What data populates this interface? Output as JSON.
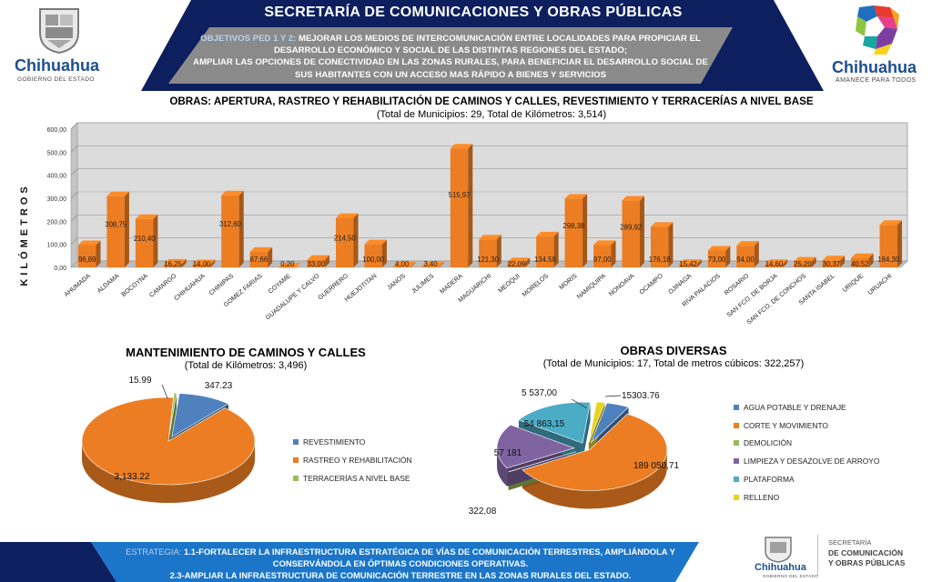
{
  "header": {
    "title": "SECRETARÍA DE COMUNICACIONES Y OBRAS PÚBLICAS",
    "objectives_label": "OBJETIVOS PED 1 Y 2:",
    "objectives_line1": "MEJORAR LOS MEDIOS DE INTERCOMUNICACIÓN ENTRE LOCALIDADES PARA PROPICIAR EL",
    "objectives_line2": "DESARROLLO ECONÓMICO Y SOCIAL DE LAS DISTINTAS REGIONES DEL ESTADO;",
    "objectives_line3": "AMPLIAR LAS OPCIONES DE CONECTIVIDAD EN LAS ZONAS RURALES, PARA BENEFICIAR EL DESARROLLO SOCIAL DE",
    "objectives_line4": "SUS HABITANTES CON UN ACCESO MAS RÁPIDO A BIENES Y SERVICIOS"
  },
  "logos": {
    "left_name": "Chihuahua",
    "left_sub": "GOBIERNO DEL ESTADO",
    "right_name": "Chihuahua",
    "right_sub": "AMANECE PARA TODOS",
    "footer_name": "Chihuahua",
    "footer_sub": "GOBIERNO DEL ESTADO",
    "footer_secretaria_1": "SECRETARÍA",
    "footer_secretaria_2": "DE COMUNICACIÓN",
    "footer_secretaria_3": "Y OBRAS PÚBLICAS"
  },
  "colors": {
    "navy": "#0d1f5e",
    "grey_band": "#8c8c8c",
    "accent_blue": "#2f74c8",
    "orange": "#ec7d22",
    "blue": "#4e81bd",
    "green": "#9bbb59",
    "purple": "#8064a2",
    "teal": "#4bacc6",
    "yellow": "#e8d320",
    "footer_blue": "#1b75c9"
  },
  "chart_data": [
    {
      "type": "bar",
      "title": "OBRAS: APERTURA, RASTREO Y REHABILITACIÓN DE CAMINOS Y CALLES, REVESTIMIENTO Y TERRACERÍAS A NIVEL BASE",
      "subtitle": "(Total de Municipios: 29, Total de Kilómetros: 3,514)",
      "ylabel": "KILÓMETROS",
      "ylim": [
        0,
        600
      ],
      "yticks": [
        "0,00",
        "100,00",
        "200,00",
        "300,00",
        "400,00",
        "500,00",
        "600,00"
      ],
      "grid": true,
      "categories": [
        "AHUMADA",
        "ALDAMA",
        "BOCOYNA",
        "CAMARGO",
        "CHIHUAHUA",
        "CHINIPAS",
        "GOMEZ FARIAS",
        "COYAME",
        "GUADALUPE Y CALVO",
        "GUERRERO",
        "HUEJOTITAN",
        "JANOS",
        "JULIMES",
        "MADERA",
        "MAGUARICHI",
        "MEOQUI",
        "MORELOS",
        "MORIS",
        "NAMIQUIPA",
        "NONOAVA",
        "OCAMPO",
        "OJINAGA",
        "RIVA PALACIOS",
        "ROSARIO",
        "SAN FCO. DE BORJA",
        "SAN FCO. DE CONCHOS",
        "SANTA ISABEL",
        "URIQUE",
        "URUACHI"
      ],
      "values": [
        96.89,
        308.75,
        210.4,
        16.25,
        14.0,
        312.6,
        67.66,
        0.2,
        33.0,
        214.5,
        100.0,
        4.0,
        3.4,
        515.97,
        121.3,
        22.09,
        134.58,
        298.38,
        97.0,
        289.92,
        176.18,
        15.42,
        73.0,
        94.0,
        14.6,
        25.2,
        30.37,
        40.52,
        184.3
      ],
      "value_labels": [
        "96,89",
        "308,75",
        "210,40",
        "16,25",
        "14,00",
        "312,60",
        "67,66",
        "0,20",
        "33,00",
        "214,50",
        "100,00",
        "4,00",
        "3,40",
        "515,97",
        "121,30",
        "22,09",
        "134,58",
        "298,38",
        "97,00",
        "289,92",
        "176,18",
        "15,42",
        "73,00",
        "94,00",
        "14,60",
        "25,20",
        "30,37",
        "40,52",
        "184,30"
      ]
    },
    {
      "type": "pie",
      "title": "MANTENIMIENTO DE CAMINOS Y CALLES",
      "subtitle": "(Total de Kilómetros: 3,496)",
      "slices": [
        {
          "name": "REVESTIMIENTO",
          "value": 347.23,
          "label": "347.23",
          "color": "#4e81bd"
        },
        {
          "name": "RASTREO Y REHABILITACIÓN",
          "value": 3133.22,
          "label": "3,133.22",
          "color": "#ec7d22"
        },
        {
          "name": "TERRACERÍAS A NIVEL BASE",
          "value": 15.99,
          "label": "15.99",
          "color": "#9bbb59"
        }
      ]
    },
    {
      "type": "pie",
      "title": "OBRAS DIVERSAS",
      "subtitle": "(Total de Municipios: 17, Total de metros cúbicos: 322,257)",
      "slices": [
        {
          "name": "AGUA POTABLE Y DRENAJE",
          "value": 15303.76,
          "label": "15303.76",
          "color": "#4e81bd"
        },
        {
          "name": "CORTE Y MOVIMIENTO",
          "value": 189050.71,
          "label": "189 050,71",
          "color": "#ec7d22"
        },
        {
          "name": "DEMOLICIÓN",
          "value": 322.08,
          "label": "322,08",
          "color": "#9bbb59"
        },
        {
          "name": "LIMPIEZA Y DESAZOLVE DE ARROYO",
          "value": 57181,
          "label": "57 181",
          "color": "#8064a2"
        },
        {
          "name": "PLATAFORMA",
          "value": 54863.15,
          "label": "54 863,15",
          "color": "#4bacc6"
        },
        {
          "name": "RELLENO",
          "value": 5537.0,
          "label": "5 537,00",
          "color": "#e8d320"
        }
      ]
    }
  ],
  "footer": {
    "strategy_label": "ESTRATEGIA:",
    "line1": "1.1-FORTALECER LA INFRAESTRUCTURA ESTRATÉGICA DE VÍAS DE COMUNICACIÓN TERRESTRES, AMPLIÁNDOLA Y",
    "line2": "CONSERVÁNDOLA EN ÓPTIMAS CONDICIONES OPERATIVAS.",
    "line3": "2.3-AMPLIAR LA INFRAESTRUCTURA DE COMUNICACIÓN TERRESTRE EN LAS ZONAS RURALES DEL ESTADO."
  }
}
